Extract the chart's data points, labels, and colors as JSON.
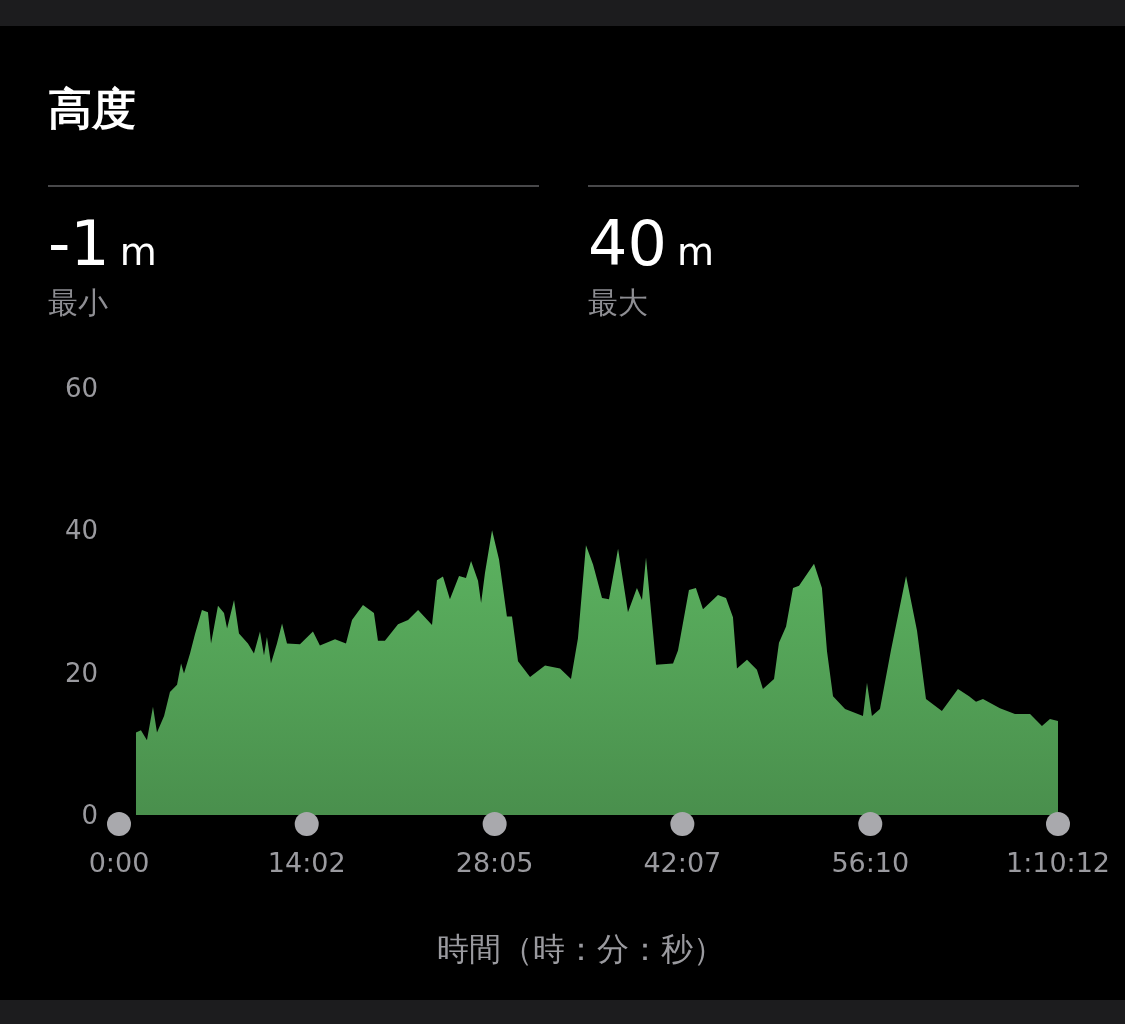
{
  "chart_data": {
    "type": "area",
    "title": "高度",
    "xlabel": "時間（時：分：秒）",
    "annotations": [
      "-1 m",
      "最小",
      "40 m",
      "最大"
    ],
    "xlim": [
      0,
      70.2
    ],
    "ylim": [
      0,
      60
    ],
    "yticks": [
      0,
      20,
      40,
      60
    ],
    "xticks": [
      {
        "value": 0,
        "label": "0:00"
      },
      {
        "value": 14.0333,
        "label": "14:02"
      },
      {
        "value": 28.0833,
        "label": "28:05"
      },
      {
        "value": 42.1167,
        "label": "42:07"
      },
      {
        "value": 56.1667,
        "label": "56:10"
      },
      {
        "value": 70.2,
        "label": "1:10:12"
      }
    ],
    "grid": false,
    "series": [
      {
        "color": "#5cb360",
        "x": [
          1.27,
          1.64,
          2.09,
          2.54,
          2.84,
          3.37,
          3.81,
          4.34,
          4.64,
          4.86,
          5.31,
          5.68,
          6.2,
          6.65,
          6.88,
          7.4,
          7.85,
          8.08,
          8.6,
          8.97,
          9.64,
          10.09,
          10.54,
          10.84,
          11.06,
          11.36,
          11.81,
          12.19,
          12.56,
          13.53,
          14.5,
          15.02,
          16.15,
          16.97,
          17.42,
          18.24,
          19.06,
          19.36,
          19.88,
          20.86,
          21.61,
          22.36,
          23.4,
          23.77,
          24.22,
          24.74,
          25.42,
          25.94,
          26.32,
          26.84,
          27.07,
          27.36,
          27.89,
          28.41,
          29.0,
          29.38,
          29.83,
          30.73,
          31.85,
          32.97,
          33.79,
          34.31,
          34.91,
          35.44,
          36.11,
          36.63,
          37.31,
          38.05,
          38.72,
          39.1,
          39.4,
          40.15,
          41.42,
          41.79,
          42.61,
          43.13,
          43.66,
          44.78,
          45.38,
          45.9,
          46.2,
          46.95,
          47.69,
          48.14,
          48.97,
          49.34,
          49.87,
          50.39,
          50.84,
          51.96,
          52.55,
          52.93,
          53.38,
          54.28,
          55.62,
          55.92,
          56.29,
          56.89,
          57.71,
          58.84,
          59.66,
          60.33,
          61.52,
          62.72,
          63.55,
          64.07,
          64.59,
          65.86,
          66.98,
          68.11,
          69.0,
          69.6,
          70.2
        ],
        "values": [
          11.6,
          11.9,
          10.5,
          15.2,
          11.6,
          13.9,
          17.3,
          18.3,
          21.3,
          19.9,
          22.7,
          25.4,
          28.8,
          28.5,
          24.1,
          29.4,
          28.4,
          26.2,
          30.2,
          25.5,
          24.1,
          22.7,
          25.8,
          22.4,
          25.0,
          21.3,
          24.1,
          26.9,
          24.1,
          24.0,
          25.8,
          23.8,
          24.7,
          24.1,
          27.4,
          29.5,
          28.4,
          24.5,
          24.5,
          26.8,
          27.4,
          28.8,
          26.7,
          33.0,
          33.5,
          30.3,
          33.6,
          33.3,
          35.7,
          32.9,
          29.8,
          34.0,
          40.0,
          35.9,
          27.9,
          27.9,
          21.6,
          19.4,
          21.0,
          20.6,
          19.1,
          24.8,
          37.9,
          35.2,
          30.5,
          30.3,
          37.4,
          28.5,
          31.9,
          30.2,
          36.2,
          21.1,
          21.3,
          23.1,
          31.6,
          31.9,
          28.9,
          30.9,
          30.5,
          27.8,
          20.6,
          21.8,
          20.4,
          17.7,
          19.1,
          24.2,
          26.5,
          31.9,
          32.2,
          35.3,
          31.9,
          23.0,
          16.7,
          14.9,
          13.9,
          18.6,
          13.9,
          14.9,
          23.1,
          33.6,
          25.9,
          16.3,
          14.6,
          17.7,
          16.7,
          15.9,
          16.3,
          15.0,
          14.2,
          14.2,
          12.5,
          13.5,
          13.2
        ]
      }
    ]
  }
}
